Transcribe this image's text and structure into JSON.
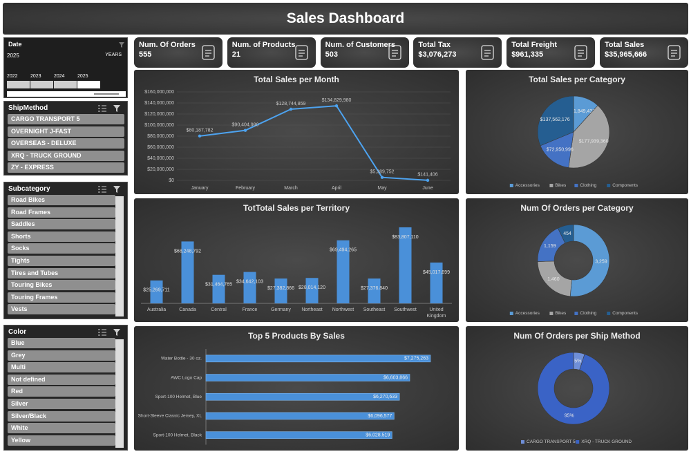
{
  "header": {
    "title": "Sales Dashboard"
  },
  "slicers": {
    "date": {
      "title": "Date",
      "selection": "2025",
      "level": "YEARS",
      "years": [
        "2022",
        "2023",
        "2024",
        "2025"
      ]
    },
    "ship_method": {
      "title": "ShipMethod",
      "items": [
        "CARGO TRANSPORT 5",
        "OVERNIGHT J-FAST",
        "OVERSEAS - DELUXE",
        "XRQ - TRUCK GROUND",
        "ZY - EXPRESS"
      ]
    },
    "subcategory": {
      "title": "Subcategory",
      "items": [
        "Road Bikes",
        "Road Frames",
        "Saddles",
        "Shorts",
        "Socks",
        "Tights",
        "Tires and Tubes",
        "Touring Bikes",
        "Touring Frames",
        "Vests"
      ]
    },
    "color": {
      "title": "Color",
      "items": [
        "Blue",
        "Grey",
        "Multi",
        "Not defined",
        "Red",
        "Silver",
        "Silver/Black",
        "White",
        "Yellow"
      ]
    }
  },
  "kpis": [
    {
      "label": "Num. Of Orders",
      "value": "555"
    },
    {
      "label": "Num. of Products",
      "value": "21"
    },
    {
      "label": "Num. of Customers",
      "value": "503"
    },
    {
      "label": "Total Tax",
      "value": "$3,076,273"
    },
    {
      "label": "Total Freight",
      "value": "$961,335"
    },
    {
      "label": "Total Sales",
      "value": "$35,965,666"
    }
  ],
  "chart_data": [
    {
      "type": "line",
      "title": "Total Sales per Month",
      "categories": [
        "January",
        "February",
        "March",
        "April",
        "May",
        "June"
      ],
      "values": [
        80187782,
        90404980,
        128744859,
        134829980,
        5389752,
        141406
      ],
      "value_labels": [
        "$80,187,782",
        "$90,404,980",
        "$128,744,859",
        "$134,829,980",
        "$5,389,752",
        "$141,406"
      ],
      "color": "#4da3f0",
      "ylim": [
        0,
        160000000
      ],
      "yticks": [
        {
          "value": 0,
          "label": "$0"
        },
        {
          "value": 20000000,
          "label": "$20,000,000"
        },
        {
          "value": 40000000,
          "label": "$40,000,000"
        },
        {
          "value": 60000000,
          "label": "$60,000,000"
        },
        {
          "value": 80000000,
          "label": "$80,000,000"
        },
        {
          "value": 100000000,
          "label": "$100,000,000"
        },
        {
          "value": 120000000,
          "label": "$120,000,000"
        },
        {
          "value": 140000000,
          "label": "$140,000,000"
        },
        {
          "value": 160000000,
          "label": "$160,000,000"
        }
      ],
      "grid": true
    },
    {
      "type": "pie",
      "title": "Total Sales per Category",
      "categories": [
        "Accessories",
        "Bikes",
        "Clothing",
        "Components"
      ],
      "values": [
        51849433,
        177939360,
        72950996,
        137562176
      ],
      "value_labels": [
        "$51,849,433",
        "$177,939,360",
        "$72,950,996",
        "$137,562,176"
      ],
      "colors": [
        "#5b9bd5",
        "#a5a5a5",
        "#4472c4",
        "#255e91"
      ],
      "legend": "bottom"
    },
    {
      "type": "bar",
      "title": "TotTotal Sales per Territory",
      "categories": [
        "Australia",
        "Canada",
        "Central",
        "France",
        "Germany",
        "Northeast",
        "Northwest",
        "Southeast",
        "Southwest",
        "United Kingdom"
      ],
      "values": [
        25269711,
        68248792,
        31464765,
        34642103,
        27382866,
        28014120,
        69494265,
        27376840,
        83807110,
        45017699
      ],
      "value_labels": [
        "$25,269,711",
        "$68,248,792",
        "$31,464,765",
        "$34,642,103",
        "$27,382,866",
        "$28,014,120",
        "$69,494,265",
        "$27,376,840",
        "$83,807,110",
        "$45,017,699"
      ],
      "color": "#4a90d9"
    },
    {
      "type": "donut",
      "title": "Num Of Orders per Category",
      "categories": [
        "Accessories",
        "Bikes",
        "Clothing",
        "Components"
      ],
      "values": [
        3259,
        1460,
        1159,
        454
      ],
      "value_labels": [
        "3,259",
        "1,460",
        "1,159",
        "454"
      ],
      "colors": [
        "#5b9bd5",
        "#a5a5a5",
        "#4472c4",
        "#255e91"
      ],
      "legend": "bottom"
    },
    {
      "type": "hbar",
      "title": "Top 5 Products By Sales",
      "categories": [
        "Water Bottle - 30 oz.",
        "AWC Logo Cap",
        "Sport-100 Helmet, Blue",
        "Short-Sleeve Classic Jersey, XL",
        "Sport-100 Helmet, Black"
      ],
      "values": [
        7275263,
        6603866,
        6270633,
        6096577,
        6028519
      ],
      "value_labels": [
        "$7,275,263",
        "$6,603,866",
        "$6,270,633",
        "$6,096,577",
        "$6,028,519"
      ],
      "color": "#4a90d9"
    },
    {
      "type": "donut",
      "title": "Num Of Orders per Ship Method",
      "categories": [
        "CARGO TRANSPORT 5",
        "XRQ - TRUCK GROUND"
      ],
      "values": [
        5,
        95
      ],
      "value_labels": [
        "5%",
        "95%"
      ],
      "colors": [
        "#6f8fd8",
        "#3a63c6"
      ],
      "legend": "bottom"
    }
  ]
}
